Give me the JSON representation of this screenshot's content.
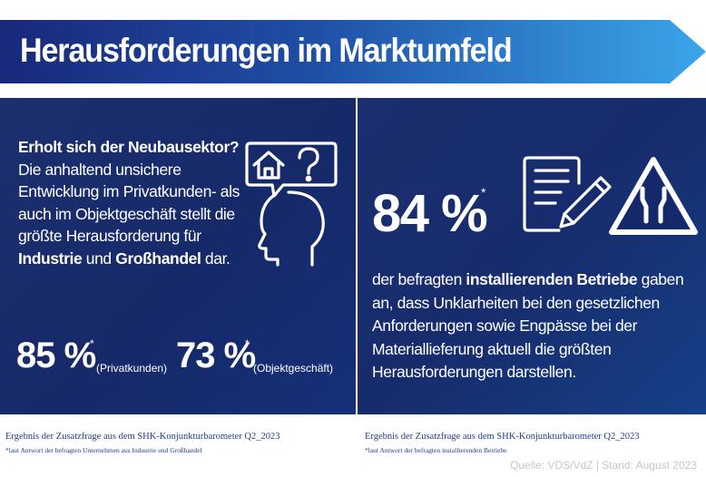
{
  "header": {
    "title": "Herausforderungen im Marktumfeld"
  },
  "left_panel": {
    "question": "Erholt sich der Neubausektor?",
    "body_part1": "Die anhaltend unsichere Entwicklung im Privatkunden- als auch im Objektgeschäft stellt die größte Herausforderung für ",
    "bold_industrie": "Industrie",
    "body_und": " und ",
    "bold_grosshandel": "Großhandel",
    "body_end": " dar.",
    "stat1": {
      "value": "85 %",
      "star": "*",
      "label": "(Privatkunden)"
    },
    "stat2": {
      "value": "73 %",
      "star": "*",
      "label": "(Objektgeschäft)"
    }
  },
  "right_panel": {
    "stat": {
      "value": "84 %",
      "star": "*"
    },
    "body_part1": "der befragten ",
    "bold_betriebe": "installierenden Betriebe",
    "body_part2": " gaben an, dass Unklarheiten bei den gesetzlichen Anforderungen sowie  Engpässe bei der Materiallieferung aktuell die größten Herausforderungen darstellen."
  },
  "footnotes": {
    "left_title": "Ergebnis der Zusatzfrage aus dem SHK-Konjunkturbarometer Q2_2023",
    "left_sub": "*laut Antwort der befragten Unternehmen aus Industrie und Großhandel",
    "right_title": "Ergebnis der Zusatzfrage aus dem SHK-Konjunkturbarometer Q2_2023",
    "right_sub": "*laut Antwort der befragten installierenden Betriebe"
  },
  "source": "Quelle: VDS/VdZ | Stand: August 2023",
  "icons": [
    "head-house-question-icon",
    "document-pen-icon",
    "road-narrows-sign-icon"
  ],
  "colors": {
    "banner_start": "#1a2a78",
    "banner_end": "#3ba0e6",
    "panel": "#1a2d6d",
    "footnote": "#1f3d8a",
    "source": "#c6c6c6"
  }
}
